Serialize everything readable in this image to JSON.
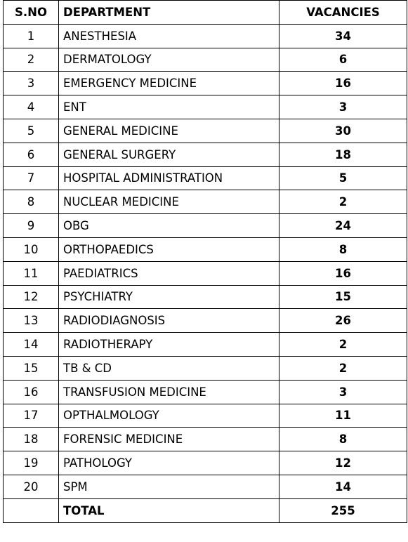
{
  "headers": {
    "sno": "S.NO",
    "department": "DEPARTMENT",
    "vacancies": "VACANCIES"
  },
  "rows": [
    {
      "sno": "1",
      "department": "ANESTHESIA",
      "vacancies": "34"
    },
    {
      "sno": "2",
      "department": "DERMATOLOGY",
      "vacancies": "6"
    },
    {
      "sno": "3",
      "department": "EMERGENCY MEDICINE",
      "vacancies": "16"
    },
    {
      "sno": "4",
      "department": "ENT",
      "vacancies": "3"
    },
    {
      "sno": "5",
      "department": "GENERAL MEDICINE",
      "vacancies": "30"
    },
    {
      "sno": "6",
      "department": "GENERAL SURGERY",
      "vacancies": "18"
    },
    {
      "sno": "7",
      "department": "HOSPITAL ADMINISTRATION",
      "vacancies": "5"
    },
    {
      "sno": "8",
      "department": "NUCLEAR MEDICINE",
      "vacancies": "2"
    },
    {
      "sno": "9",
      "department": "OBG",
      "vacancies": "24"
    },
    {
      "sno": "10",
      "department": "ORTHOPAEDICS",
      "vacancies": "8"
    },
    {
      "sno": "11",
      "department": "PAEDIATRICS",
      "vacancies": "16"
    },
    {
      "sno": "12",
      "department": "PSYCHIATRY",
      "vacancies": "15"
    },
    {
      "sno": "13",
      "department": "RADIODIAGNOSIS",
      "vacancies": "26"
    },
    {
      "sno": "14",
      "department": "RADIOTHERAPY",
      "vacancies": "2"
    },
    {
      "sno": "15",
      "department": "TB & CD",
      "vacancies": "2"
    },
    {
      "sno": "16",
      "department": "TRANSFUSION MEDICINE",
      "vacancies": "3"
    },
    {
      "sno": "17",
      "department": "OPTHALMOLOGY",
      "vacancies": "11"
    },
    {
      "sno": "18",
      "department": "FORENSIC MEDICINE",
      "vacancies": "8"
    },
    {
      "sno": "19",
      "department": "PATHOLOGY",
      "vacancies": "12"
    },
    {
      "sno": "20",
      "department": "SPM",
      "vacancies": "14"
    }
  ],
  "total": {
    "sno": "",
    "label": "TOTAL",
    "vacancies": "255"
  }
}
